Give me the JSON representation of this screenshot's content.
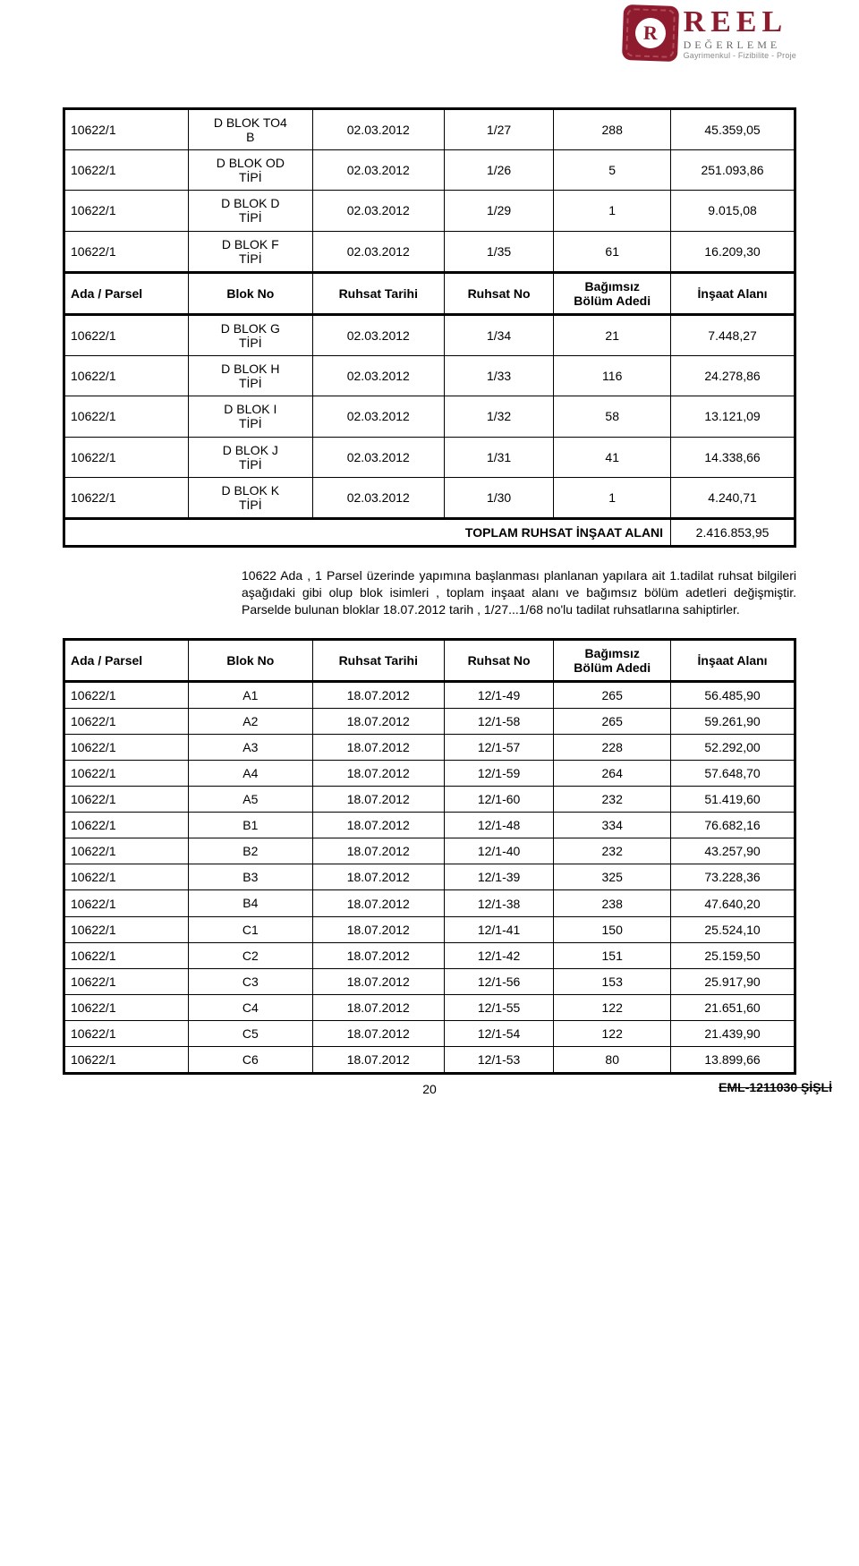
{
  "logo": {
    "mark_letter": "R",
    "brand": "REEL",
    "brand_sub": "DEĞERLEME",
    "tagline": "Gayrimenkul - Fizibilite - Proje"
  },
  "table1": {
    "top_rows": [
      {
        "p": "10622/1",
        "blok": "D BLOK TO4\nB",
        "tarih": "02.03.2012",
        "no": "1/27",
        "adet": "288",
        "alan": "45.359,05"
      },
      {
        "p": "10622/1",
        "blok": "D BLOK OD\nTİPİ",
        "tarih": "02.03.2012",
        "no": "1/26",
        "adet": "5",
        "alan": "251.093,86"
      },
      {
        "p": "10622/1",
        "blok": "D BLOK D\nTİPİ",
        "tarih": "02.03.2012",
        "no": "1/29",
        "adet": "1",
        "alan": "9.015,08"
      },
      {
        "p": "10622/1",
        "blok": "D BLOK F\nTİPİ",
        "tarih": "02.03.2012",
        "no": "1/35",
        "adet": "61",
        "alan": "16.209,30"
      }
    ],
    "header": {
      "c0": "Ada / Parsel",
      "c1": "Blok No",
      "c2": "Ruhsat Tarihi",
      "c3": "Ruhsat No",
      "c4": "Bağımsız\nBölüm Adedi",
      "c5": "İnşaat Alanı"
    },
    "mid_rows": [
      {
        "p": "10622/1",
        "blok": "D BLOK G\nTİPİ",
        "tarih": "02.03.2012",
        "no": "1/34",
        "adet": "21",
        "alan": "7.448,27"
      },
      {
        "p": "10622/1",
        "blok": "D BLOK H\nTİPİ",
        "tarih": "02.03.2012",
        "no": "1/33",
        "adet": "116",
        "alan": "24.278,86"
      },
      {
        "p": "10622/1",
        "blok": "D BLOK I\nTİPİ",
        "tarih": "02.03.2012",
        "no": "1/32",
        "adet": "58",
        "alan": "13.121,09"
      },
      {
        "p": "10622/1",
        "blok": "D BLOK J\nTİPİ",
        "tarih": "02.03.2012",
        "no": "1/31",
        "adet": "41",
        "alan": "14.338,66"
      },
      {
        "p": "10622/1",
        "blok": "D BLOK K\nTİPİ",
        "tarih": "02.03.2012",
        "no": "1/30",
        "adet": "1",
        "alan": "4.240,71"
      }
    ],
    "total_label": "TOPLAM RUHSAT İNŞAAT ALANI",
    "total_value": "2.416.853,95"
  },
  "paragraph": "10622 Ada , 1 Parsel üzerinde yapımına başlanması planlanan yapılara ait 1.tadilat ruhsat bilgileri aşağıdaki gibi olup blok isimleri , toplam inşaat alanı ve bağımsız bölüm adetleri değişmiştir. Parselde bulunan bloklar 18.07.2012 tarih , 1/27...1/68 no'lu tadilat ruhsatlarına sahiptirler.",
  "table2": {
    "header": {
      "c0": "Ada / Parsel",
      "c1": "Blok No",
      "c2": "Ruhsat Tarihi",
      "c3": "Ruhsat No",
      "c4": "Bağımsız\nBölüm Adedi",
      "c5": "İnşaat Alanı"
    },
    "rows": [
      {
        "p": "10622/1",
        "blok": "A1",
        "tarih": "18.07.2012",
        "no": "12/1-49",
        "adet": "265",
        "alan": "56.485,90"
      },
      {
        "p": "10622/1",
        "blok": "A2",
        "tarih": "18.07.2012",
        "no": "12/1-58",
        "adet": "265",
        "alan": "59.261,90"
      },
      {
        "p": "10622/1",
        "blok": "A3",
        "tarih": "18.07.2012",
        "no": "12/1-57",
        "adet": "228",
        "alan": "52.292,00"
      },
      {
        "p": "10622/1",
        "blok": "A4",
        "tarih": "18.07.2012",
        "no": "12/1-59",
        "adet": "264",
        "alan": "57.648,70"
      },
      {
        "p": "10622/1",
        "blok": "A5",
        "tarih": "18.07.2012",
        "no": "12/1-60",
        "adet": "232",
        "alan": "51.419,60"
      },
      {
        "p": "10622/1",
        "blok": "B1",
        "tarih": "18.07.2012",
        "no": "12/1-48",
        "adet": "334",
        "alan": "76.682,16"
      },
      {
        "p": "10622/1",
        "blok": "B2",
        "tarih": "18.07.2012",
        "no": "12/1-40",
        "adet": "232",
        "alan": "43.257,90"
      },
      {
        "p": "10622/1",
        "blok": "B3",
        "tarih": "18.07.2012",
        "no": "12/1-39",
        "adet": "325",
        "alan": "73.228,36"
      },
      {
        "p": "10622/1",
        "blok": "B4",
        "tarih": "18.07.2012",
        "no": "12/1-38",
        "adet": "238",
        "alan": "47.640,20"
      },
      {
        "p": "10622/1",
        "blok": "C1",
        "tarih": "18.07.2012",
        "no": "12/1-41",
        "adet": "150",
        "alan": "25.524,10"
      },
      {
        "p": "10622/1",
        "blok": "C2",
        "tarih": "18.07.2012",
        "no": "12/1-42",
        "adet": "151",
        "alan": "25.159,50"
      },
      {
        "p": "10622/1",
        "blok": "C3",
        "tarih": "18.07.2012",
        "no": "12/1-56",
        "adet": "153",
        "alan": "25.917,90"
      },
      {
        "p": "10622/1",
        "blok": "C4",
        "tarih": "18.07.2012",
        "no": "12/1-55",
        "adet": "122",
        "alan": "21.651,60"
      },
      {
        "p": "10622/1",
        "blok": "C5",
        "tarih": "18.07.2012",
        "no": "12/1-54",
        "adet": "122",
        "alan": "21.439,90"
      },
      {
        "p": "10622/1",
        "blok": "C6",
        "tarih": "18.07.2012",
        "no": "12/1-53",
        "adet": "80",
        "alan": "13.899,66"
      }
    ]
  },
  "footer": {
    "page": "20",
    "code": "EML-1211030 ŞİŞLİ"
  },
  "col_widths": [
    "17%",
    "17%",
    "18%",
    "15%",
    "16%",
    "17%"
  ]
}
